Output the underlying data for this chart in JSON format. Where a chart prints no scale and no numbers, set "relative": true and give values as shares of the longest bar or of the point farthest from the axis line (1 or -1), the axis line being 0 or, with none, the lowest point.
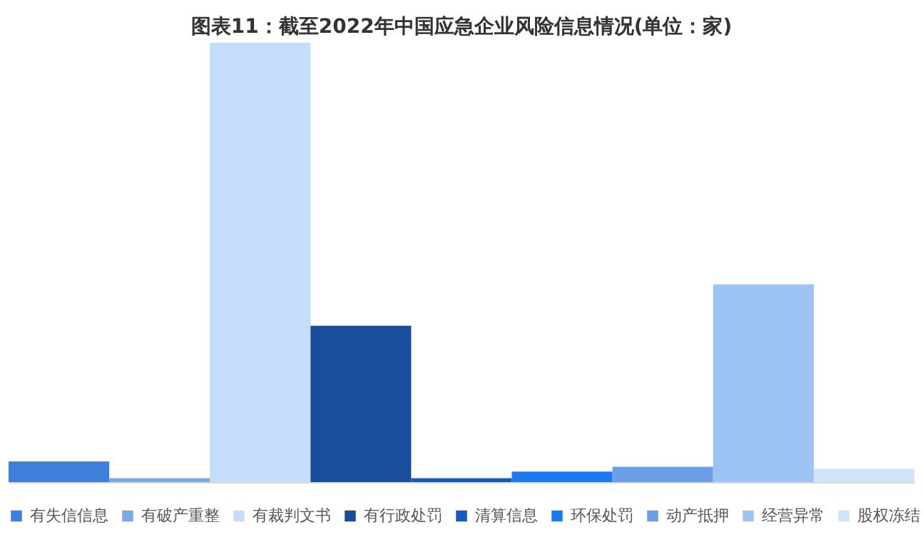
{
  "chart_data": {
    "type": "bar",
    "title": "图表11：截至2022年中国应急企业风险信息情况(单位：家)",
    "relative": true,
    "categories": [
      null,
      null,
      null,
      null,
      null,
      null,
      null,
      null,
      null
    ],
    "series": [
      {
        "name": "有失信信息",
        "color": "#3f7fdc",
        "values": [
          0.047,
          null,
          null,
          null,
          null,
          null,
          null,
          null,
          null
        ]
      },
      {
        "name": "有破产重整",
        "color": "#7aa8e8",
        "values": [
          null,
          0.009,
          null,
          null,
          null,
          null,
          null,
          null,
          null
        ]
      },
      {
        "name": "有裁判文书",
        "color": "#c5ddfa",
        "values": [
          null,
          null,
          1,
          null,
          null,
          null,
          null,
          null,
          null
        ]
      },
      {
        "name": "有行政处罚",
        "color": "#174d9a",
        "values": [
          null,
          null,
          null,
          0.356,
          null,
          null,
          null,
          null,
          null
        ]
      },
      {
        "name": "清算信息",
        "color": "#1558c0",
        "values": [
          null,
          null,
          null,
          null,
          0.009,
          null,
          null,
          null,
          null
        ]
      },
      {
        "name": "环保处罚",
        "color": "#1a7af0",
        "values": [
          null,
          null,
          null,
          null,
          null,
          0.024,
          null,
          null,
          null
        ]
      },
      {
        "name": "动产抵押",
        "color": "#6a9ee6",
        "values": [
          null,
          null,
          null,
          null,
          null,
          null,
          0.035,
          null,
          null
        ]
      },
      {
        "name": "经营异常",
        "color": "#9dc3f3",
        "values": [
          null,
          null,
          null,
          null,
          null,
          null,
          null,
          0.45,
          null
        ]
      },
      {
        "name": "股权冻结",
        "color": "#cfe3fb",
        "values": [
          null,
          null,
          null,
          null,
          null,
          null,
          null,
          null,
          0.03
        ]
      }
    ],
    "stacked": true,
    "legend": "bottom",
    "grid": false,
    "tick_labels": false
  }
}
